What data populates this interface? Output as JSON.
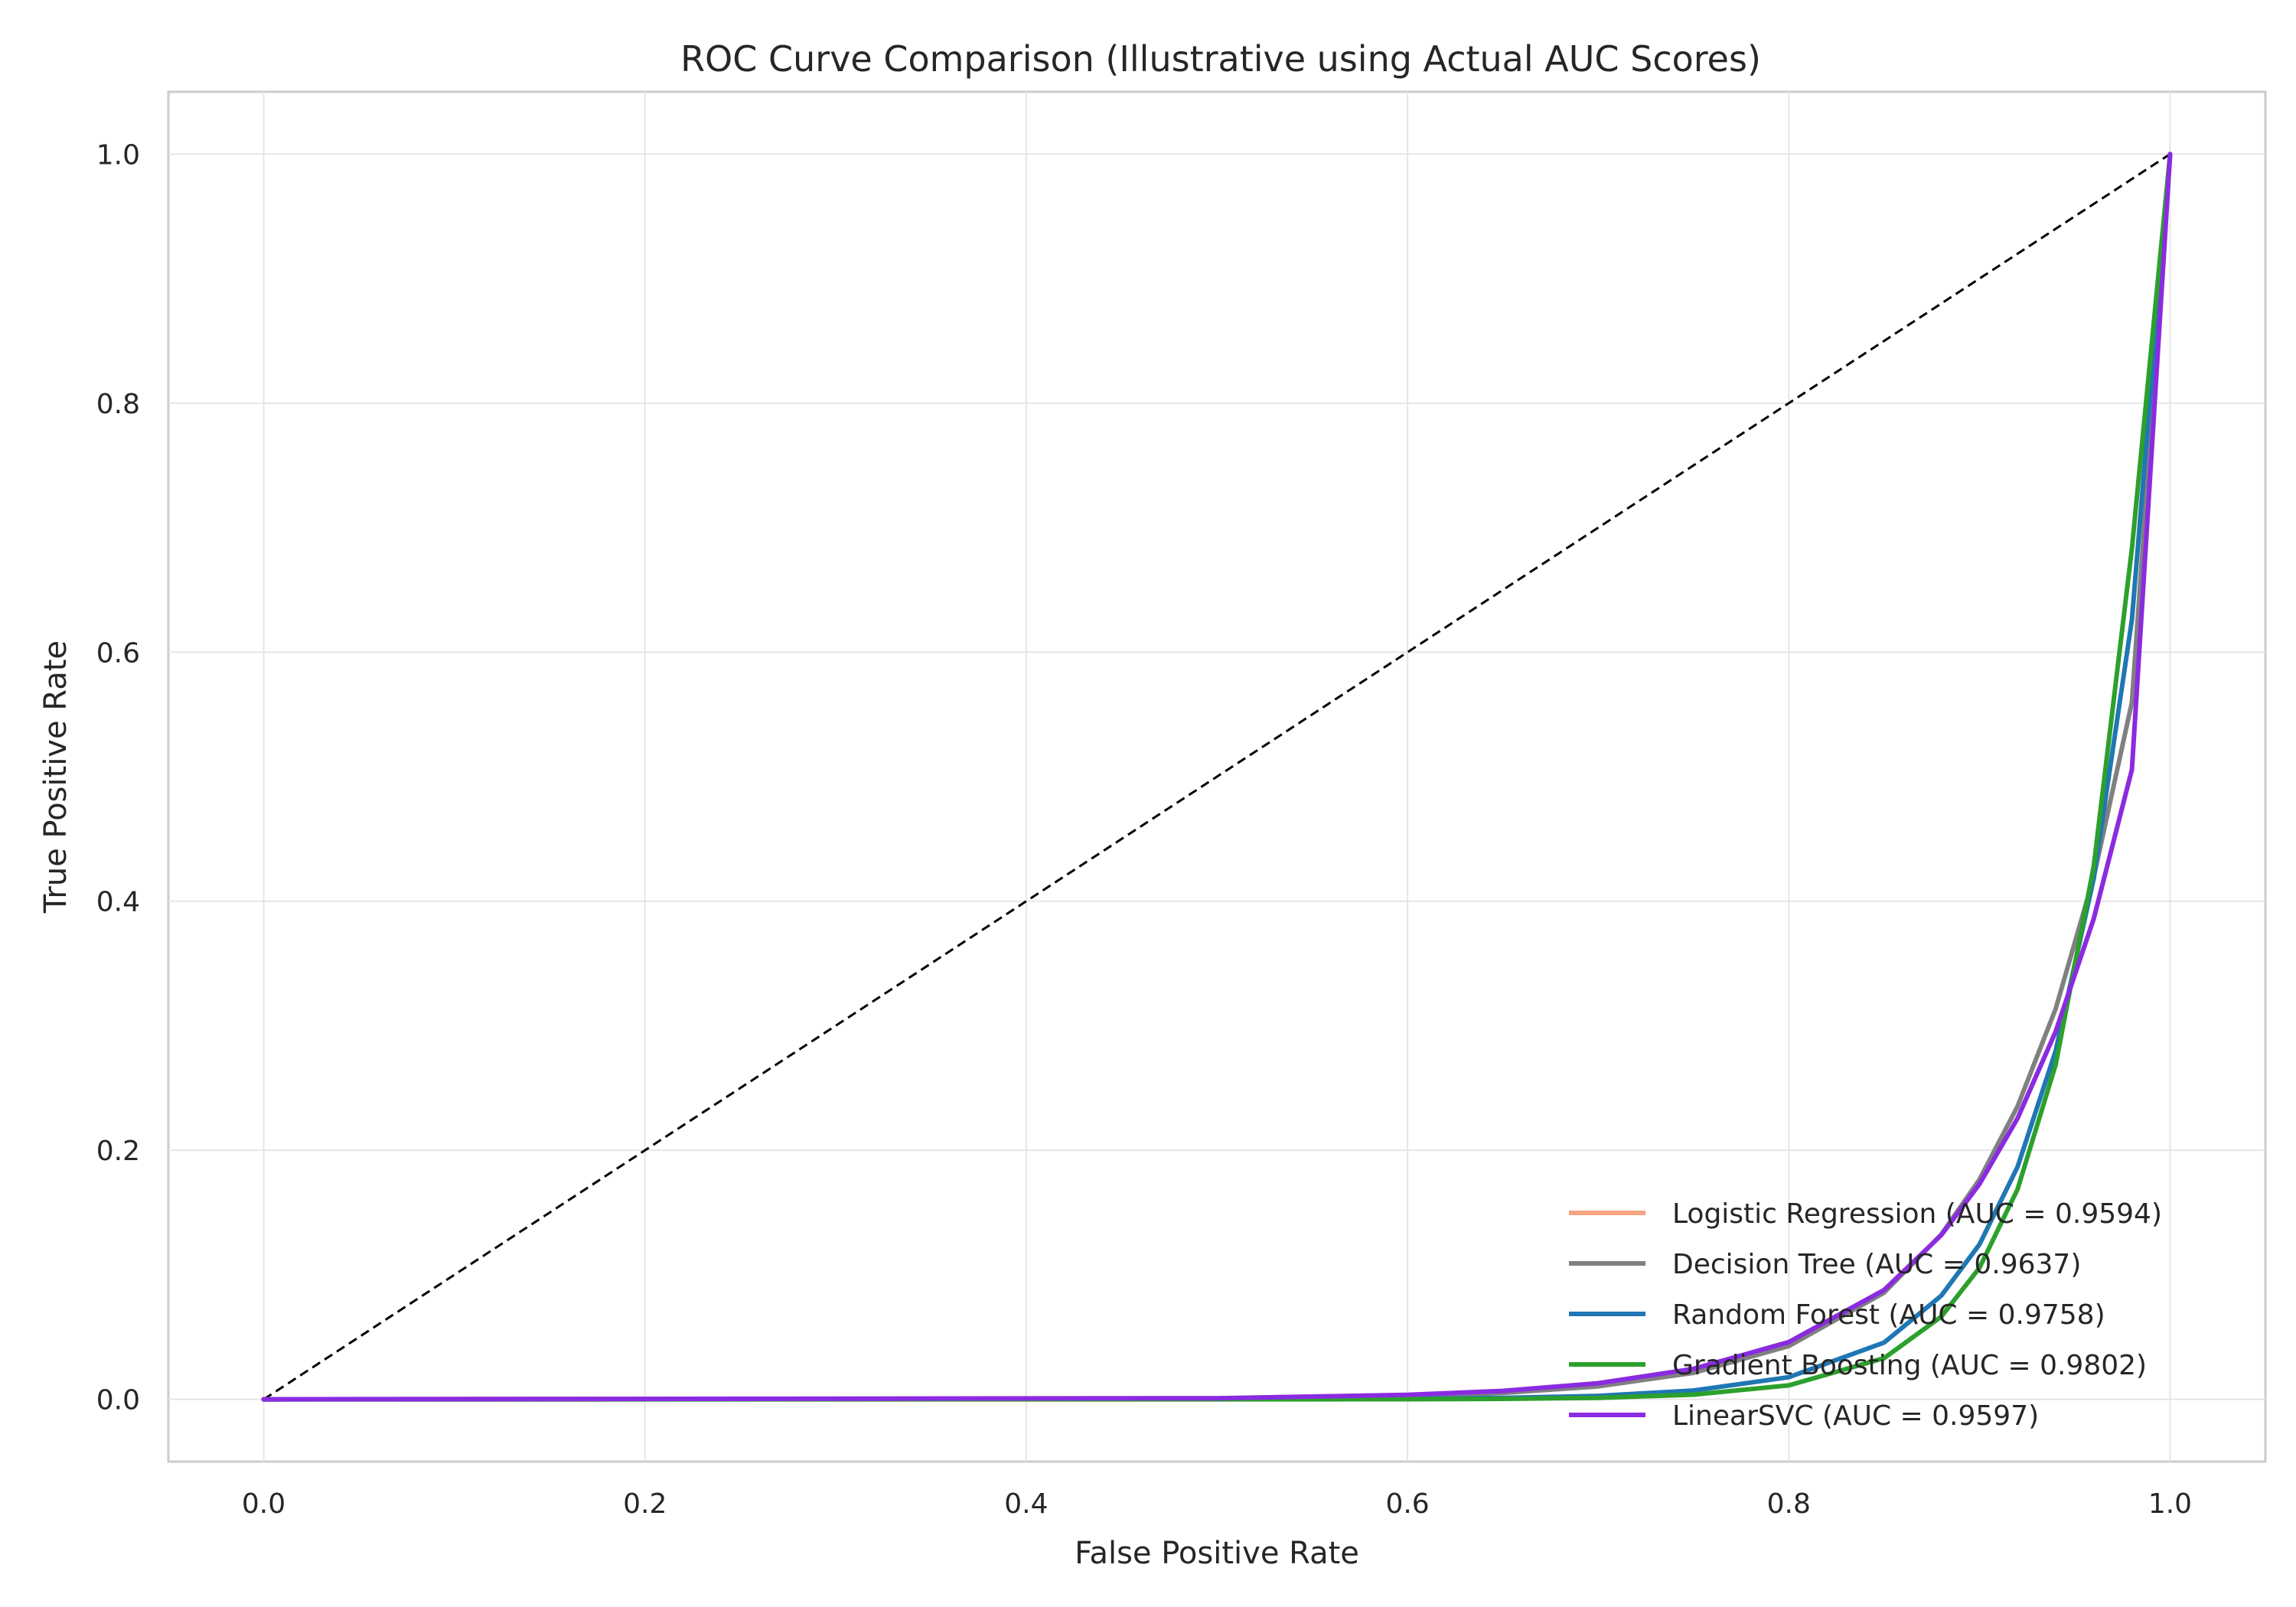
{
  "chart_data": {
    "type": "line",
    "title": "ROC Curve Comparison (Illustrative using Actual AUC Scores)",
    "xlabel": "False Positive Rate",
    "ylabel": "True Positive Rate",
    "xlim": [
      -0.05,
      1.05
    ],
    "ylim": [
      -0.05,
      1.05
    ],
    "xticks": [
      "0.0",
      "0.2",
      "0.4",
      "0.6",
      "0.8",
      "1.0"
    ],
    "yticks": [
      "0.0",
      "0.2",
      "0.4",
      "0.6",
      "0.8",
      "1.0"
    ],
    "grid": true,
    "legend_position": "lower-right",
    "diagonal": {
      "x": [
        0,
        1
      ],
      "y": [
        0,
        1
      ],
      "color": "#000000",
      "style": "dashed"
    },
    "series": [
      {
        "name": "Logistic Regression (AUC = 0.9594)",
        "color": "#f4a582",
        "x": [
          0,
          0.5,
          0.6,
          0.65,
          0.7,
          0.75,
          0.8,
          0.85,
          0.88,
          0.9,
          0.92,
          0.94,
          0.96,
          0.98,
          1.0
        ],
        "y": [
          0,
          0.0009,
          0.0036,
          0.0068,
          0.0129,
          0.0245,
          0.046,
          0.0878,
          0.1319,
          0.1729,
          0.2257,
          0.2954,
          0.3861,
          0.5057,
          1.0
        ]
      },
      {
        "name": "Decision Tree (AUC = 0.9637)",
        "color": "#808080",
        "x": [
          0,
          0.5,
          0.6,
          0.65,
          0.7,
          0.75,
          0.8,
          0.85,
          0.88,
          0.9,
          0.92,
          0.94,
          0.96,
          0.98,
          1.0
        ],
        "y": [
          0,
          0.0006,
          0.0025,
          0.0051,
          0.0104,
          0.0213,
          0.0428,
          0.0857,
          0.1324,
          0.1765,
          0.2353,
          0.3137,
          0.4196,
          0.5598,
          1.0
        ]
      },
      {
        "name": "Random Forest (AUC = 0.9758)",
        "color": "#1f77b4",
        "x": [
          0,
          0.5,
          0.6,
          0.65,
          0.7,
          0.75,
          0.8,
          0.85,
          0.88,
          0.9,
          0.92,
          0.94,
          0.96,
          0.98,
          1.0
        ],
        "y": [
          0,
          0.0001,
          0.0004,
          0.0011,
          0.0028,
          0.0071,
          0.0178,
          0.0456,
          0.0832,
          0.1244,
          0.1867,
          0.2799,
          0.4185,
          0.6261,
          1.0
        ]
      },
      {
        "name": "Gradient Boosting (AUC = 0.9802)",
        "color": "#2ca02c",
        "x": [
          0,
          0.5,
          0.6,
          0.65,
          0.7,
          0.75,
          0.8,
          0.85,
          0.88,
          0.9,
          0.92,
          0.94,
          0.96,
          0.98,
          1.0
        ],
        "y": [
          0,
          0.0,
          0.0001,
          0.0004,
          0.0012,
          0.0038,
          0.0112,
          0.0331,
          0.0664,
          0.1056,
          0.1687,
          0.2688,
          0.4284,
          0.6832,
          1.0
        ]
      },
      {
        "name": "LinearSVC (AUC = 0.9597)",
        "color": "#8a2be2",
        "x": [
          0,
          0.5,
          0.6,
          0.65,
          0.7,
          0.75,
          0.8,
          0.85,
          0.88,
          0.9,
          0.92,
          0.94,
          0.96,
          0.98,
          1.0
        ],
        "y": [
          0,
          0.0009,
          0.0036,
          0.0068,
          0.0129,
          0.0245,
          0.046,
          0.0878,
          0.1319,
          0.1729,
          0.2257,
          0.2954,
          0.3861,
          0.5057,
          1.0
        ]
      }
    ]
  }
}
